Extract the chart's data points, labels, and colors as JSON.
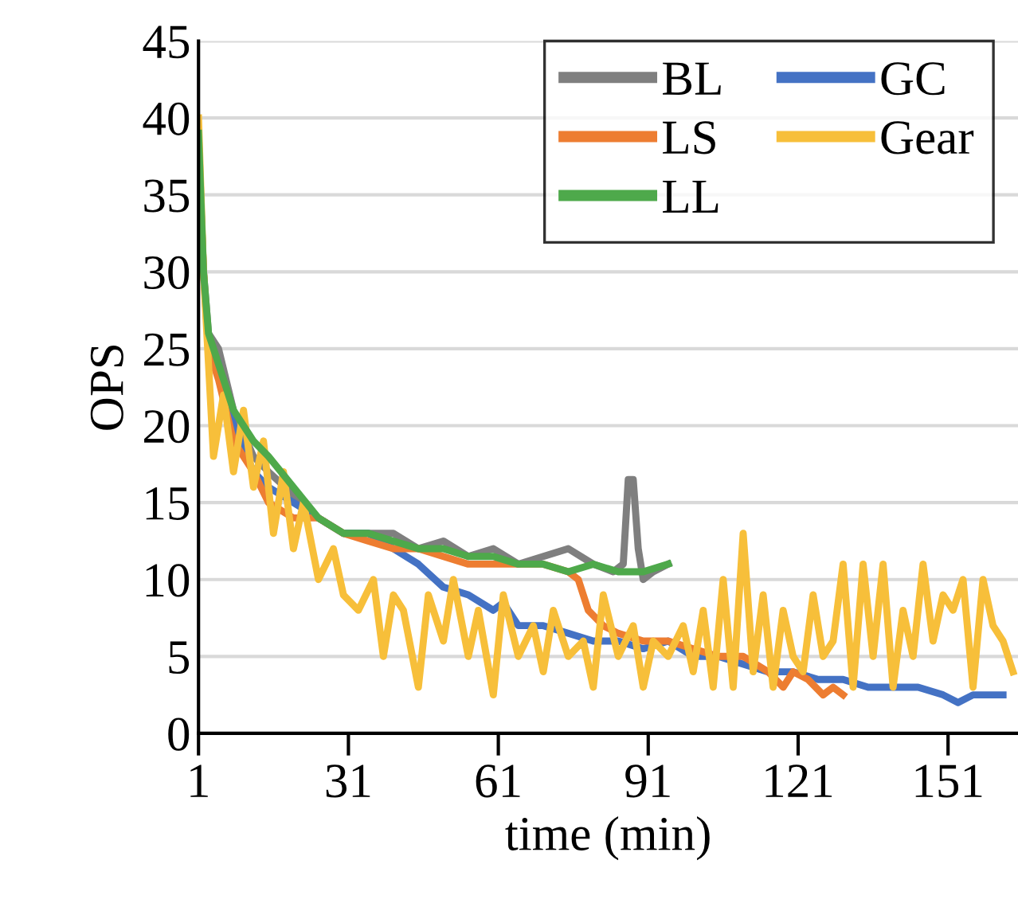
{
  "chart_data": {
    "type": "line",
    "xlabel": "time (min)",
    "ylabel": "OPS",
    "xlim": [
      1,
      165
    ],
    "xticks": [
      1,
      31,
      61,
      91,
      121,
      151
    ],
    "ylim": [
      0,
      45
    ],
    "yticks": [
      0,
      5,
      10,
      15,
      20,
      25,
      30,
      35,
      40,
      45
    ],
    "grid": "y",
    "legend": "top right",
    "marker": "none",
    "line_style": "solid",
    "series": [
      {
        "name": "BL",
        "color": "#7f7f7f",
        "x": [
          1,
          2,
          3,
          5,
          8,
          12,
          15,
          20,
          25,
          30,
          35,
          40,
          45,
          50,
          55,
          60,
          65,
          70,
          75,
          80,
          84,
          86,
          87,
          88,
          89,
          90,
          92,
          95
        ],
        "values": [
          38,
          30,
          26,
          25,
          21,
          18,
          17,
          15.5,
          14,
          13,
          13,
          13,
          12,
          12.5,
          11.5,
          12,
          11,
          11.5,
          12,
          11,
          10.5,
          11,
          16.5,
          16.5,
          12,
          10,
          10.5,
          11
        ]
      },
      {
        "name": "GC",
        "color": "#4472c4",
        "x": [
          5,
          8,
          12,
          15,
          20,
          25,
          30,
          35,
          40,
          45,
          50,
          55,
          60,
          62,
          65,
          70,
          75,
          80,
          85,
          90,
          95,
          100,
          105,
          110,
          115,
          120,
          125,
          130,
          135,
          140,
          145,
          150,
          153,
          156,
          160,
          162
        ],
        "values": [
          24,
          20,
          17,
          16,
          15,
          14,
          13,
          13,
          12,
          11,
          9.5,
          9,
          8,
          8.5,
          7,
          7,
          6.5,
          6,
          6,
          5.5,
          6,
          5,
          5,
          4.5,
          4,
          4,
          3.5,
          3.5,
          3,
          3,
          3,
          2.5,
          2,
          2.5,
          2.5,
          2.5
        ]
      },
      {
        "name": "LS",
        "color": "#ed7d31",
        "x": [
          1,
          2,
          3,
          5,
          8,
          12,
          15,
          20,
          25,
          30,
          35,
          40,
          45,
          50,
          55,
          60,
          65,
          70,
          75,
          77,
          79,
          82,
          85,
          90,
          95,
          100,
          105,
          110,
          115,
          118,
          120,
          123,
          126,
          128,
          130
        ],
        "values": [
          38,
          30,
          25,
          23,
          19,
          17,
          15,
          14,
          14,
          13,
          12.5,
          12,
          12,
          11.5,
          11,
          11,
          11,
          11,
          10.5,
          10,
          8,
          7,
          6.5,
          6,
          6,
          5.5,
          5,
          5,
          4,
          3,
          4,
          3.5,
          2.5,
          3,
          2.5
        ]
      },
      {
        "name": "Gear",
        "color": "#f7bf3a",
        "x": [
          1,
          2,
          4,
          6,
          8,
          10,
          12,
          14,
          16,
          18,
          20,
          22,
          25,
          28,
          30,
          33,
          36,
          38,
          40,
          42,
          45,
          47,
          50,
          52,
          55,
          57,
          60,
          62,
          65,
          68,
          70,
          72,
          75,
          78,
          80,
          82,
          85,
          88,
          90,
          92,
          95,
          98,
          100,
          102,
          104,
          106,
          108,
          110,
          112,
          114,
          116,
          118,
          120,
          122,
          124,
          126,
          128,
          130,
          132,
          134,
          136,
          138,
          140,
          142,
          144,
          146,
          148,
          150,
          152,
          154,
          156,
          158,
          160,
          162,
          164
        ],
        "values": [
          40,
          30,
          18,
          22,
          17,
          21,
          16,
          19,
          13,
          17,
          12,
          15,
          10,
          12,
          9,
          8,
          10,
          5,
          9,
          8,
          3,
          9,
          6,
          10,
          5,
          8,
          2.5,
          9,
          5,
          7,
          4,
          8,
          5,
          6,
          3,
          9,
          5,
          7,
          3,
          6,
          5,
          7,
          4,
          8,
          3,
          10,
          3,
          13,
          4,
          9,
          3,
          8,
          5,
          4,
          9,
          5,
          6,
          11,
          3,
          11,
          5,
          11,
          3,
          8,
          5,
          11,
          6,
          9,
          8,
          10,
          3,
          10,
          7,
          6,
          4
        ]
      },
      {
        "name": "LL",
        "color": "#4ea94b",
        "x": [
          1,
          2,
          3,
          5,
          8,
          12,
          15,
          20,
          25,
          30,
          35,
          40,
          45,
          50,
          55,
          60,
          65,
          70,
          75,
          80,
          85,
          90,
          95
        ],
        "values": [
          39,
          30,
          26,
          24,
          21,
          19,
          18,
          16,
          14,
          13,
          13,
          12.5,
          12,
          12,
          11.5,
          11.5,
          11,
          11,
          10.5,
          11,
          10.5,
          10.5,
          11
        ]
      }
    ]
  }
}
